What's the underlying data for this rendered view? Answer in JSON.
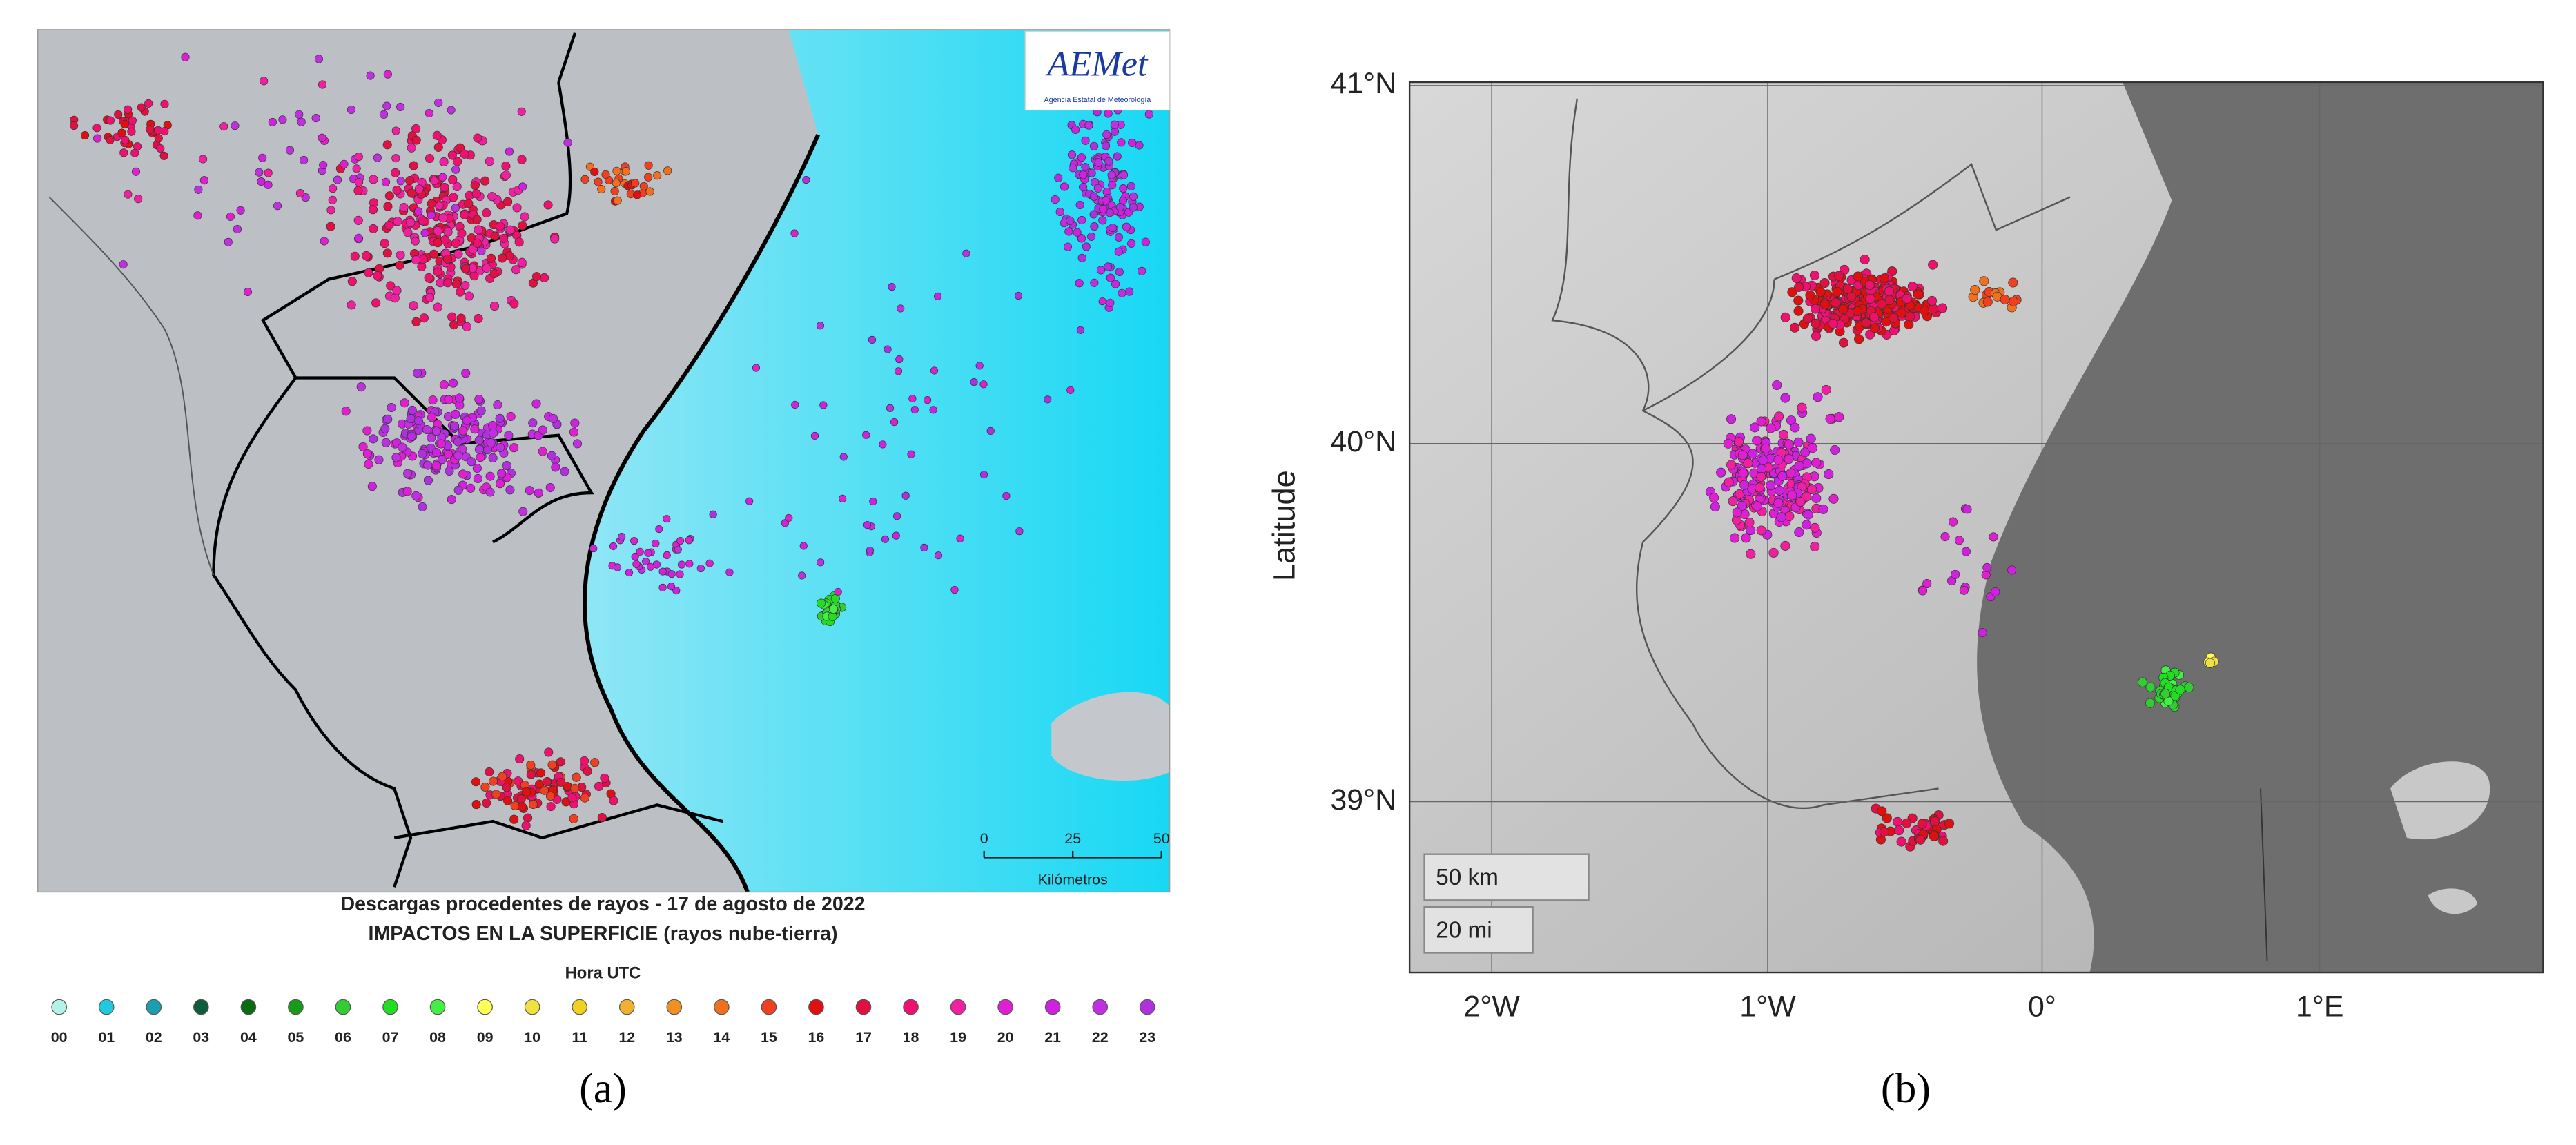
{
  "panels": [
    {
      "label": "(a)",
      "logo": {
        "name": "AEMet",
        "subtitle": "Agencia Estatal de Meteorología"
      },
      "title_lines": [
        "Descargas procedentes de rayos - 17 de agosto de 2022",
        "IMPACTOS EN LA SUPERFICIE (rayos nube-tierra)"
      ],
      "legend": {
        "title": "Hora UTC",
        "hours": [
          {
            "label": "00",
            "color": "#b4f2e8"
          },
          {
            "label": "01",
            "color": "#22c8e0"
          },
          {
            "label": "02",
            "color": "#1a9fb0"
          },
          {
            "label": "03",
            "color": "#0d5c3a"
          },
          {
            "label": "04",
            "color": "#0a6b10"
          },
          {
            "label": "05",
            "color": "#1a9a1a"
          },
          {
            "label": "06",
            "color": "#33cc33"
          },
          {
            "label": "07",
            "color": "#22dd22"
          },
          {
            "label": "08",
            "color": "#44ee44"
          },
          {
            "label": "09",
            "color": "#ffff55"
          },
          {
            "label": "10",
            "color": "#f0e040"
          },
          {
            "label": "11",
            "color": "#f0d020"
          },
          {
            "label": "12",
            "color": "#f0b030"
          },
          {
            "label": "13",
            "color": "#f09020"
          },
          {
            "label": "14",
            "color": "#f07020"
          },
          {
            "label": "15",
            "color": "#f04020"
          },
          {
            "label": "16",
            "color": "#e01010"
          },
          {
            "label": "17",
            "color": "#e01040"
          },
          {
            "label": "18",
            "color": "#f01070"
          },
          {
            "label": "19",
            "color": "#f020a0"
          },
          {
            "label": "20",
            "color": "#e020d0"
          },
          {
            "label": "21",
            "color": "#d020e0"
          },
          {
            "label": "22",
            "color": "#c030e0"
          },
          {
            "label": "23",
            "color": "#b030e0"
          }
        ]
      },
      "scale": {
        "ticks": [
          0,
          25,
          50
        ],
        "unit": "Kilómetros"
      }
    },
    {
      "label": "(b)",
      "y_axis_label": "Latitude",
      "lat_ticks": [
        "41°N",
        "40°N",
        "39°N"
      ],
      "lon_ticks": [
        "2°W",
        "1°W",
        "0°",
        "1°E"
      ],
      "scale_bars": [
        "50 km",
        "20 mi"
      ]
    }
  ]
}
